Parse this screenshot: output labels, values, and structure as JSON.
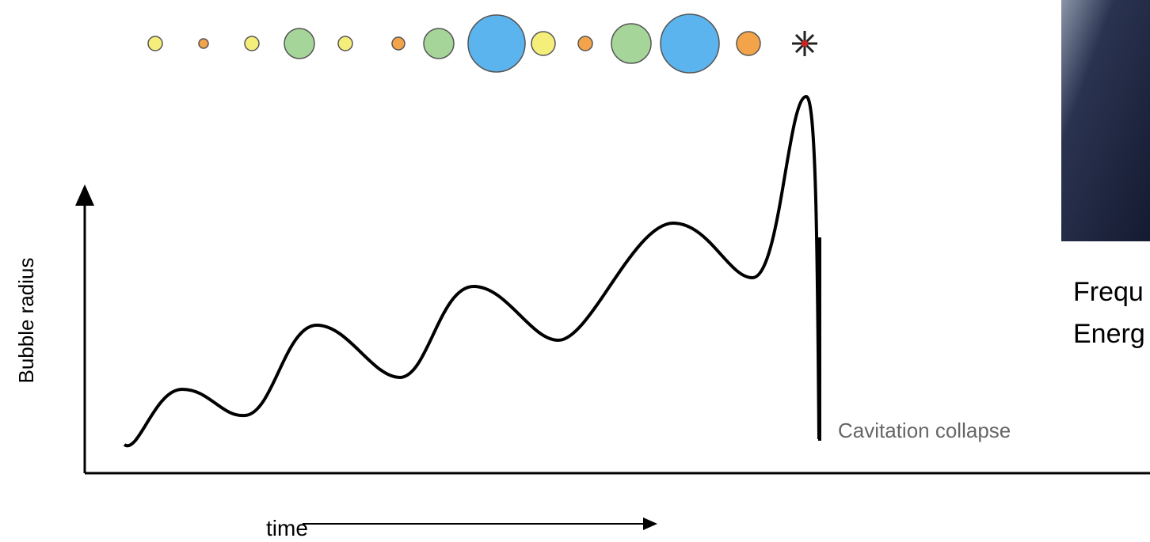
{
  "diagram": {
    "y_axis_label": "Bubble radius",
    "x_axis_label": "time",
    "collapse_label": "Cavitation collapse",
    "side_text": [
      "Frequ",
      "Energ"
    ]
  }
}
